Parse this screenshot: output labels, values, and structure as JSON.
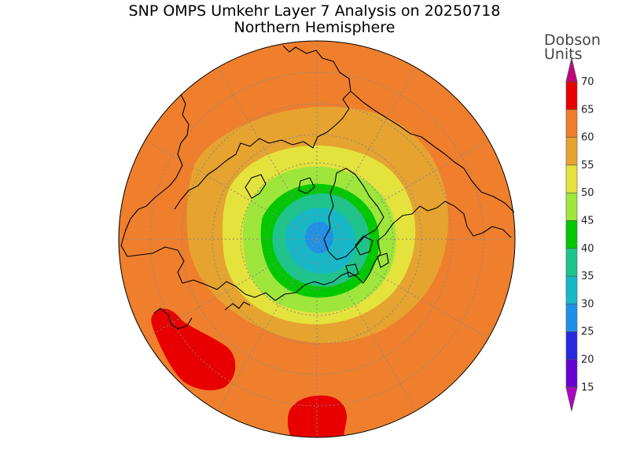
{
  "title": "SNP OMPS Umkehr Layer 7 Analysis on 20250718",
  "subtitle": "Northern Hemisphere",
  "legend": {
    "unit_line1": "Dobson",
    "unit_line2": "Units",
    "levels": [
      {
        "value": "70",
        "color": "#c8007c"
      },
      {
        "value": "65",
        "color": "#e80000"
      },
      {
        "value": "60",
        "color": "#ef7f2c"
      },
      {
        "value": "55",
        "color": "#e6a330"
      },
      {
        "value": "50",
        "color": "#e4e23c"
      },
      {
        "value": "45",
        "color": "#9ee63c"
      },
      {
        "value": "40",
        "color": "#00c800"
      },
      {
        "value": "35",
        "color": "#1ec48c"
      },
      {
        "value": "30",
        "color": "#16b8c8"
      },
      {
        "value": "25",
        "color": "#1e90e8"
      },
      {
        "value": "20",
        "color": "#2828e0"
      },
      {
        "value": "15",
        "color": "#6400d2"
      }
    ],
    "bottom_color": "#b400c8"
  },
  "map": {
    "projection": "north-polar-stereographic",
    "ocean_background": "#ef7f2c",
    "coastline_color": "#000000",
    "graticule_color": "#888888"
  }
}
